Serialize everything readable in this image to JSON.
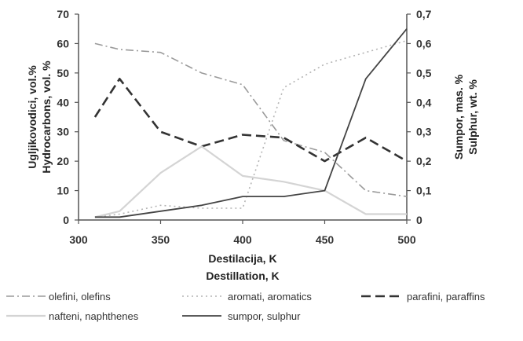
{
  "chart_data": {
    "type": "line",
    "x": [
      310,
      325,
      350,
      375,
      400,
      425,
      450,
      475,
      500
    ],
    "xlim": [
      300,
      500
    ],
    "x_ticks": [
      "300",
      "350",
      "400",
      "450",
      "500"
    ],
    "xlabel_line1": "Destilacija, K",
    "xlabel_line2": "Destillation, K",
    "ylim_left": [
      0,
      70
    ],
    "y_ticks_left": [
      "0",
      "10",
      "20",
      "30",
      "40",
      "50",
      "60",
      "70"
    ],
    "ylabel_left_line1": "Ugljikovodici, vol.%",
    "ylabel_left_line2": "Hydrocarbons, vol. %",
    "ylim_right": [
      0,
      0.7
    ],
    "y_ticks_right": [
      "0",
      "0,1",
      "0,2",
      "0,3",
      "0,4",
      "0,5",
      "0,6",
      "0,7"
    ],
    "ylabel_right_line1": "Sumpor, mas. %",
    "ylabel_right_line2": "Sulphur, wt. %",
    "grid": false,
    "legend_position": "bottom",
    "series": [
      {
        "name": "olefini, olefins",
        "axis": "left",
        "style": "dashdot",
        "color": "#9a9a9a",
        "values": [
          60,
          58,
          57,
          50,
          46,
          27,
          23,
          10,
          8
        ]
      },
      {
        "name": "aromati, aromatics",
        "axis": "left",
        "style": "dotted",
        "color": "#b4b4b4",
        "values": [
          1,
          2,
          5,
          4,
          4,
          45,
          53,
          57,
          61
        ]
      },
      {
        "name": "parafini, paraffins",
        "axis": "left",
        "style": "dashed",
        "color": "#333333",
        "values": [
          35,
          48,
          30,
          25,
          29,
          28,
          20,
          28,
          20
        ]
      },
      {
        "name": "nafteni, naphthenes",
        "axis": "left",
        "style": "solid-light",
        "color": "#d4d4d4",
        "values": [
          1,
          3,
          16,
          25,
          15,
          13,
          10,
          2,
          2
        ]
      },
      {
        "name": "sumpor, sulphur",
        "axis": "right",
        "style": "solid",
        "color": "#444444",
        "values": [
          0.01,
          0.01,
          0.03,
          0.05,
          0.08,
          0.08,
          0.1,
          0.48,
          0.65
        ]
      }
    ]
  }
}
